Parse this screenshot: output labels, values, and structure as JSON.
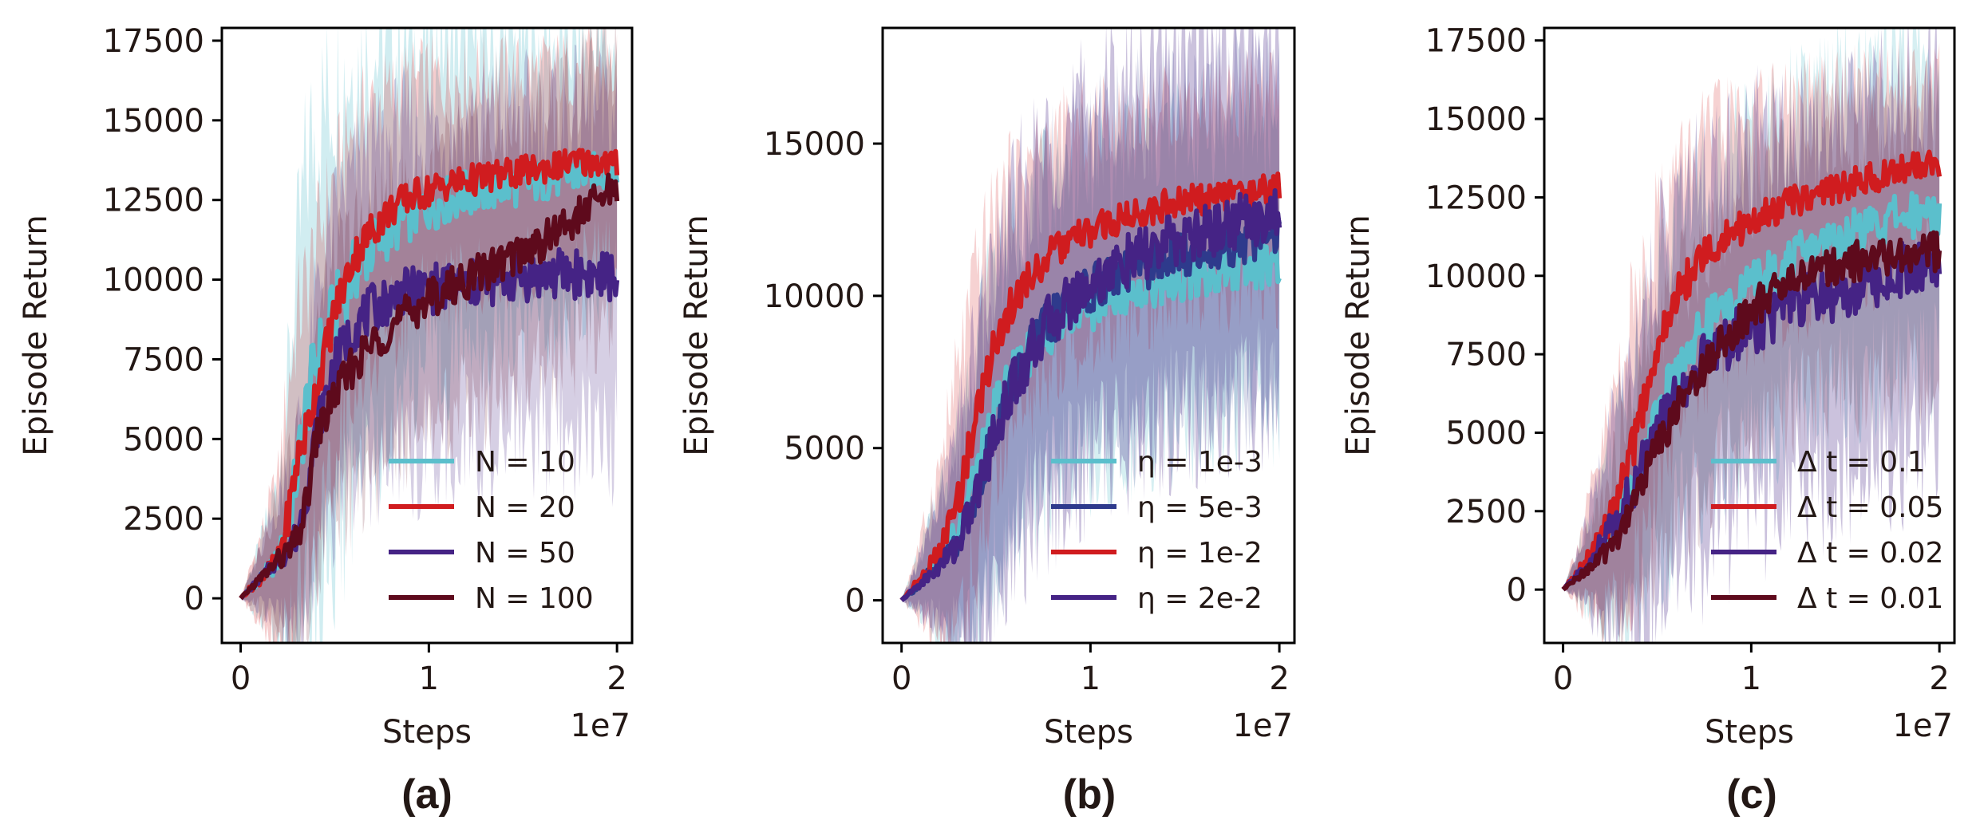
{
  "figure": {
    "panels": [
      "(a)",
      "(b)",
      "(c)"
    ]
  },
  "chart_data": [
    {
      "type": "line",
      "title": "",
      "panel_label": "(a)",
      "xlabel": "Steps",
      "ylabel": "Episode Return",
      "x_offset_label": "1e7",
      "xlim": [
        -0.1,
        2.08
      ],
      "ylim": [
        -1400,
        17900
      ],
      "x_ticks": [
        0,
        1,
        2
      ],
      "x_tick_labels": [
        "0",
        "1",
        "2"
      ],
      "y_ticks": [
        0,
        2500,
        5000,
        7500,
        10000,
        12500,
        15000,
        17500
      ],
      "y_tick_labels": [
        "0",
        "2500",
        "5000",
        "7500",
        "10000",
        "12500",
        "15000",
        "17500"
      ],
      "legend_position": "lower-right",
      "series": [
        {
          "name": "N = 10",
          "color": "#5bbfcc",
          "band_opacity": 0.28,
          "x": [
            0,
            0.1,
            0.2,
            0.25,
            0.3,
            0.35,
            0.4,
            0.5,
            0.6,
            0.7,
            0.8,
            0.9,
            1.0,
            1.1,
            1.2,
            1.3,
            1.4,
            1.5,
            1.6,
            1.7,
            1.8,
            1.9,
            2.0
          ],
          "values": [
            0,
            600,
            1200,
            2200,
            4000,
            6000,
            7400,
            9000,
            10200,
            11000,
            11600,
            12000,
            12300,
            12500,
            12700,
            12800,
            12900,
            13000,
            13100,
            13200,
            13300,
            13400,
            13400
          ],
          "band": [
            0,
            1000,
            2500,
            4500,
            6500,
            7500,
            7500,
            7000,
            6500,
            6000,
            5500,
            5200,
            5000,
            4800,
            4600,
            4500,
            4400,
            4300,
            4200,
            4100,
            4000,
            3800,
            3600
          ]
        },
        {
          "name": "N = 20",
          "color": "#d01c1f",
          "band_opacity": 0.22,
          "x": [
            0,
            0.1,
            0.2,
            0.25,
            0.3,
            0.35,
            0.4,
            0.5,
            0.6,
            0.7,
            0.8,
            0.9,
            1.0,
            1.1,
            1.2,
            1.3,
            1.4,
            1.5,
            1.6,
            1.7,
            1.8,
            1.9,
            2.0
          ],
          "values": [
            0,
            600,
            1200,
            2500,
            4300,
            5300,
            6500,
            9000,
            10700,
            11600,
            12200,
            12600,
            12800,
            13000,
            13100,
            13200,
            13300,
            13400,
            13500,
            13600,
            13700,
            13700,
            13600
          ],
          "band": [
            0,
            1200,
            2500,
            4000,
            4500,
            4500,
            4500,
            4200,
            4000,
            3800,
            3600,
            3500,
            3400,
            3300,
            3200,
            3200,
            3100,
            3000,
            3000,
            3000,
            3000,
            3000,
            2900
          ]
        },
        {
          "name": "N = 50",
          "color": "#452385",
          "band_opacity": 0.22,
          "x": [
            0,
            0.1,
            0.2,
            0.25,
            0.3,
            0.35,
            0.4,
            0.5,
            0.6,
            0.7,
            0.8,
            0.9,
            1.0,
            1.1,
            1.2,
            1.3,
            1.4,
            1.5,
            1.6,
            1.7,
            1.8,
            1.9,
            2.0
          ],
          "values": [
            0,
            600,
            1200,
            1500,
            2000,
            3200,
            5200,
            7400,
            8500,
            9100,
            9400,
            9600,
            9700,
            9800,
            9800,
            9900,
            10000,
            10100,
            10100,
            10200,
            10200,
            10100,
            10100
          ],
          "band": [
            0,
            800,
            1800,
            2500,
            3200,
            3600,
            4200,
            4500,
            4700,
            4800,
            4900,
            5000,
            5000,
            5000,
            5000,
            5000,
            5000,
            5000,
            5000,
            5000,
            5000,
            5000,
            5000
          ]
        },
        {
          "name": "N = 100",
          "color": "#5e0a1c",
          "band_opacity": 0.18,
          "x": [
            0,
            0.1,
            0.2,
            0.25,
            0.3,
            0.35,
            0.4,
            0.5,
            0.6,
            0.7,
            0.8,
            0.9,
            1.0,
            1.1,
            1.2,
            1.3,
            1.4,
            1.5,
            1.6,
            1.7,
            1.8,
            1.9,
            2.0
          ],
          "values": [
            0,
            600,
            1200,
            1400,
            1800,
            3000,
            5000,
            6400,
            7300,
            8000,
            8500,
            9000,
            9400,
            9700,
            10000,
            10300,
            10600,
            10900,
            11200,
            11600,
            12000,
            12500,
            13000
          ],
          "band": [
            0,
            900,
            2000,
            2800,
            3200,
            3500,
            3800,
            4000,
            4000,
            4000,
            4000,
            4000,
            4000,
            4000,
            4000,
            4000,
            4000,
            4000,
            4000,
            4000,
            4000,
            4000,
            4000
          ]
        }
      ]
    },
    {
      "type": "line",
      "title": "",
      "panel_label": "(b)",
      "xlabel": "Steps",
      "ylabel": "Episode Return",
      "x_offset_label": "1e7",
      "xlim": [
        -0.1,
        2.08
      ],
      "ylim": [
        -1400,
        18800
      ],
      "x_ticks": [
        0,
        1,
        2
      ],
      "x_tick_labels": [
        "0",
        "1",
        "2"
      ],
      "y_ticks": [
        0,
        5000,
        10000,
        15000
      ],
      "y_tick_labels": [
        "0",
        "5000",
        "10000",
        "15000"
      ],
      "legend_position": "lower-right",
      "series": [
        {
          "name": "η = 1e-3",
          "color": "#5bbfcc",
          "band_opacity": 0.25,
          "x": [
            0,
            0.1,
            0.2,
            0.3,
            0.4,
            0.5,
            0.6,
            0.7,
            0.8,
            0.9,
            1.0,
            1.1,
            1.2,
            1.3,
            1.4,
            1.5,
            1.6,
            1.7,
            1.8,
            1.9,
            2.0
          ],
          "values": [
            0,
            600,
            1300,
            2300,
            4300,
            6300,
            7500,
            8300,
            8900,
            9300,
            9600,
            9900,
            10100,
            10300,
            10500,
            10600,
            10700,
            10800,
            10900,
            10900,
            11000
          ],
          "band": [
            0,
            1000,
            2200,
            3500,
            4500,
            4800,
            4800,
            4800,
            4800,
            4800,
            4800,
            4800,
            4800,
            4800,
            4800,
            4800,
            4800,
            4800,
            4800,
            4800,
            4800
          ]
        },
        {
          "name": "η = 5e-3",
          "color": "#2e3a8c",
          "band_opacity": 0.18,
          "x": [
            0,
            0.1,
            0.2,
            0.3,
            0.4,
            0.5,
            0.6,
            0.7,
            0.8,
            0.9,
            1.0,
            1.1,
            1.2,
            1.3,
            1.4,
            1.5,
            1.6,
            1.7,
            1.8,
            1.9,
            2.0
          ],
          "values": [
            0,
            550,
            1200,
            2000,
            3600,
            5800,
            7300,
            8400,
            9200,
            9800,
            10200,
            10500,
            10800,
            11000,
            11200,
            11400,
            11500,
            11700,
            11800,
            11900,
            12000
          ],
          "band": [
            0,
            900,
            2000,
            3200,
            4200,
            4800,
            5000,
            5000,
            5000,
            5000,
            5000,
            5000,
            5000,
            5000,
            5000,
            5000,
            5000,
            5000,
            5000,
            5000,
            5000
          ]
        },
        {
          "name": "η = 1e-2",
          "color": "#d01c1f",
          "band_opacity": 0.2,
          "x": [
            0,
            0.1,
            0.2,
            0.3,
            0.4,
            0.5,
            0.6,
            0.7,
            0.8,
            0.9,
            1.0,
            1.1,
            1.2,
            1.3,
            1.4,
            1.5,
            1.6,
            1.7,
            1.8,
            1.9,
            2.0
          ],
          "values": [
            0,
            700,
            1500,
            3300,
            6200,
            8600,
            9900,
            10800,
            11400,
            11800,
            12100,
            12400,
            12600,
            12800,
            13000,
            13100,
            13200,
            13300,
            13400,
            13500,
            13500
          ],
          "band": [
            0,
            1200,
            2800,
            4200,
            4500,
            4200,
            4000,
            3800,
            3700,
            3600,
            3500,
            3400,
            3300,
            3300,
            3200,
            3200,
            3200,
            3200,
            3200,
            3200,
            3200
          ]
        },
        {
          "name": "η = 2e-2",
          "color": "#452385",
          "band_opacity": 0.28,
          "x": [
            0,
            0.1,
            0.2,
            0.3,
            0.4,
            0.5,
            0.6,
            0.7,
            0.8,
            0.9,
            1.0,
            1.1,
            1.2,
            1.3,
            1.4,
            1.5,
            1.6,
            1.7,
            1.8,
            1.9,
            2.0
          ],
          "values": [
            0,
            550,
            1100,
            1900,
            3500,
            5600,
            7200,
            8400,
            9300,
            9900,
            10400,
            10800,
            11100,
            11400,
            11700,
            11900,
            12100,
            12300,
            12500,
            12600,
            12700
          ],
          "band": [
            0,
            900,
            2000,
            3500,
            5000,
            5500,
            5800,
            5800,
            5800,
            5800,
            5800,
            5800,
            5800,
            5800,
            5800,
            5800,
            5800,
            5800,
            5800,
            5800,
            5800
          ]
        }
      ]
    },
    {
      "type": "line",
      "title": "",
      "panel_label": "(c)",
      "xlabel": "Steps",
      "ylabel": "Episode Return",
      "x_offset_label": "1e7",
      "xlim": [
        -0.1,
        2.08
      ],
      "ylim": [
        -1700,
        17900
      ],
      "x_ticks": [
        0,
        1,
        2
      ],
      "x_tick_labels": [
        "0",
        "1",
        "2"
      ],
      "y_ticks": [
        0,
        2500,
        5000,
        7500,
        10000,
        12500,
        15000,
        17500
      ],
      "y_tick_labels": [
        "0",
        "2500",
        "5000",
        "7500",
        "10000",
        "12500",
        "15000",
        "17500"
      ],
      "legend_position": "lower-right",
      "series": [
        {
          "name": "Δ t = 0.1",
          "color": "#5bbfcc",
          "band_opacity": 0.25,
          "x": [
            0,
            0.1,
            0.2,
            0.3,
            0.4,
            0.5,
            0.6,
            0.7,
            0.8,
            0.9,
            1.0,
            1.1,
            1.2,
            1.3,
            1.4,
            1.5,
            1.6,
            1.7,
            1.8,
            1.9,
            2.0
          ],
          "values": [
            0,
            600,
            1400,
            2500,
            3700,
            5500,
            7000,
            8000,
            8700,
            9200,
            9700,
            10100,
            10500,
            10800,
            11100,
            11300,
            11500,
            11700,
            11900,
            12000,
            12100
          ],
          "band": [
            0,
            1000,
            2200,
            3300,
            4200,
            4600,
            4800,
            4800,
            4800,
            4800,
            4800,
            4800,
            4800,
            4800,
            4800,
            4800,
            4800,
            4800,
            4800,
            4800,
            4800
          ]
        },
        {
          "name": "Δ t = 0.05",
          "color": "#d01c1f",
          "band_opacity": 0.2,
          "x": [
            0,
            0.1,
            0.2,
            0.3,
            0.4,
            0.5,
            0.6,
            0.7,
            0.8,
            0.9,
            1.0,
            1.1,
            1.2,
            1.3,
            1.4,
            1.5,
            1.6,
            1.7,
            1.8,
            1.9,
            2.0
          ],
          "values": [
            0,
            700,
            1600,
            3000,
            5200,
            7600,
            9300,
            10300,
            11000,
            11400,
            11700,
            12000,
            12300,
            12500,
            12700,
            12900,
            13100,
            13200,
            13400,
            13500,
            13600
          ],
          "band": [
            0,
            1200,
            2600,
            4000,
            4500,
            4300,
            4000,
            3800,
            3600,
            3500,
            3400,
            3300,
            3200,
            3200,
            3100,
            3100,
            3000,
            3000,
            3000,
            3000,
            3000
          ]
        },
        {
          "name": "Δ t = 0.02",
          "color": "#452385",
          "band_opacity": 0.28,
          "x": [
            0,
            0.1,
            0.2,
            0.3,
            0.4,
            0.5,
            0.6,
            0.7,
            0.8,
            0.9,
            1.0,
            1.1,
            1.2,
            1.3,
            1.4,
            1.5,
            1.6,
            1.7,
            1.8,
            1.9,
            2.0
          ],
          "values": [
            0,
            600,
            1400,
            2500,
            3600,
            5000,
            6200,
            7000,
            7600,
            8000,
            8400,
            8700,
            9000,
            9200,
            9400,
            9600,
            9800,
            10000,
            10200,
            10400,
            10500
          ],
          "band": [
            0,
            900,
            2500,
            3800,
            5000,
            5500,
            5800,
            5800,
            5800,
            5800,
            5800,
            5800,
            5800,
            5800,
            5800,
            5800,
            5800,
            5800,
            5800,
            5800,
            5800
          ]
        },
        {
          "name": "Δ t = 0.01",
          "color": "#5e0a1c",
          "band_opacity": 0.15,
          "x": [
            0,
            0.1,
            0.2,
            0.3,
            0.4,
            0.5,
            0.6,
            0.7,
            0.8,
            0.9,
            1.0,
            1.1,
            1.2,
            1.3,
            1.4,
            1.5,
            1.6,
            1.7,
            1.8,
            1.9,
            2.0
          ],
          "values": [
            0,
            500,
            1000,
            1800,
            3200,
            4600,
            5700,
            6700,
            7600,
            8300,
            8900,
            9400,
            9800,
            10100,
            10300,
            10400,
            10500,
            10600,
            10700,
            10700,
            10800
          ],
          "band": [
            0,
            800,
            1800,
            2800,
            3500,
            3800,
            4000,
            4000,
            4000,
            4000,
            4000,
            4000,
            4000,
            4000,
            4000,
            4000,
            4000,
            4000,
            4000,
            4000,
            4000
          ]
        }
      ]
    }
  ]
}
